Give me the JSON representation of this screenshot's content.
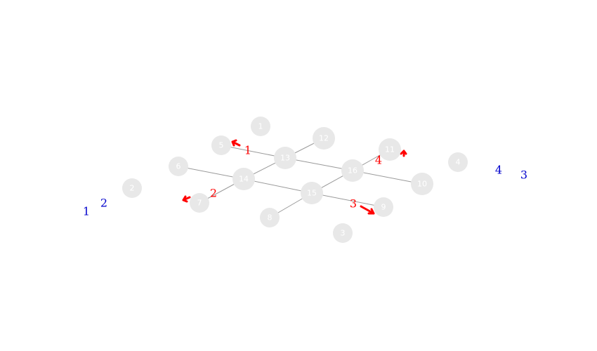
{
  "colors": {
    "node_fill": "#e8e8e8",
    "node_text": "#ffffff",
    "edge": "#9a9a9a",
    "red": "#ff0000",
    "blue": "#0000cc"
  },
  "nodes": [
    {
      "id": "n1",
      "label": "1"
    },
    {
      "id": "n2",
      "label": "2"
    },
    {
      "id": "n3",
      "label": "3"
    },
    {
      "id": "n4",
      "label": "4"
    },
    {
      "id": "n5",
      "label": "5"
    },
    {
      "id": "n6",
      "label": "6"
    },
    {
      "id": "n7",
      "label": "7"
    },
    {
      "id": "n8",
      "label": "8"
    },
    {
      "id": "n9",
      "label": "9"
    },
    {
      "id": "n10",
      "label": "10"
    },
    {
      "id": "n11",
      "label": "11"
    },
    {
      "id": "n12",
      "label": "12"
    },
    {
      "id": "n13",
      "label": "13"
    },
    {
      "id": "n14",
      "label": "14"
    },
    {
      "id": "n15",
      "label": "15"
    },
    {
      "id": "n16",
      "label": "16"
    }
  ],
  "edges": [
    [
      "n5",
      "n13"
    ],
    [
      "n13",
      "n16"
    ],
    [
      "n16",
      "n10"
    ],
    [
      "n6",
      "n14"
    ],
    [
      "n14",
      "n15"
    ],
    [
      "n15",
      "n9"
    ],
    [
      "n12",
      "n13"
    ],
    [
      "n13",
      "n14"
    ],
    [
      "n14",
      "n7"
    ],
    [
      "n11",
      "n16"
    ],
    [
      "n16",
      "n15"
    ],
    [
      "n15",
      "n8"
    ]
  ],
  "red_labels": [
    {
      "id": "r1",
      "text": "1"
    },
    {
      "id": "r2",
      "text": "2"
    },
    {
      "id": "r3",
      "text": "3"
    },
    {
      "id": "r4",
      "text": "4"
    }
  ],
  "blue_labels": [
    {
      "id": "b1",
      "text": "1"
    },
    {
      "id": "b2",
      "text": "2"
    },
    {
      "id": "b3",
      "text": "3"
    },
    {
      "id": "b4",
      "text": "4"
    }
  ]
}
